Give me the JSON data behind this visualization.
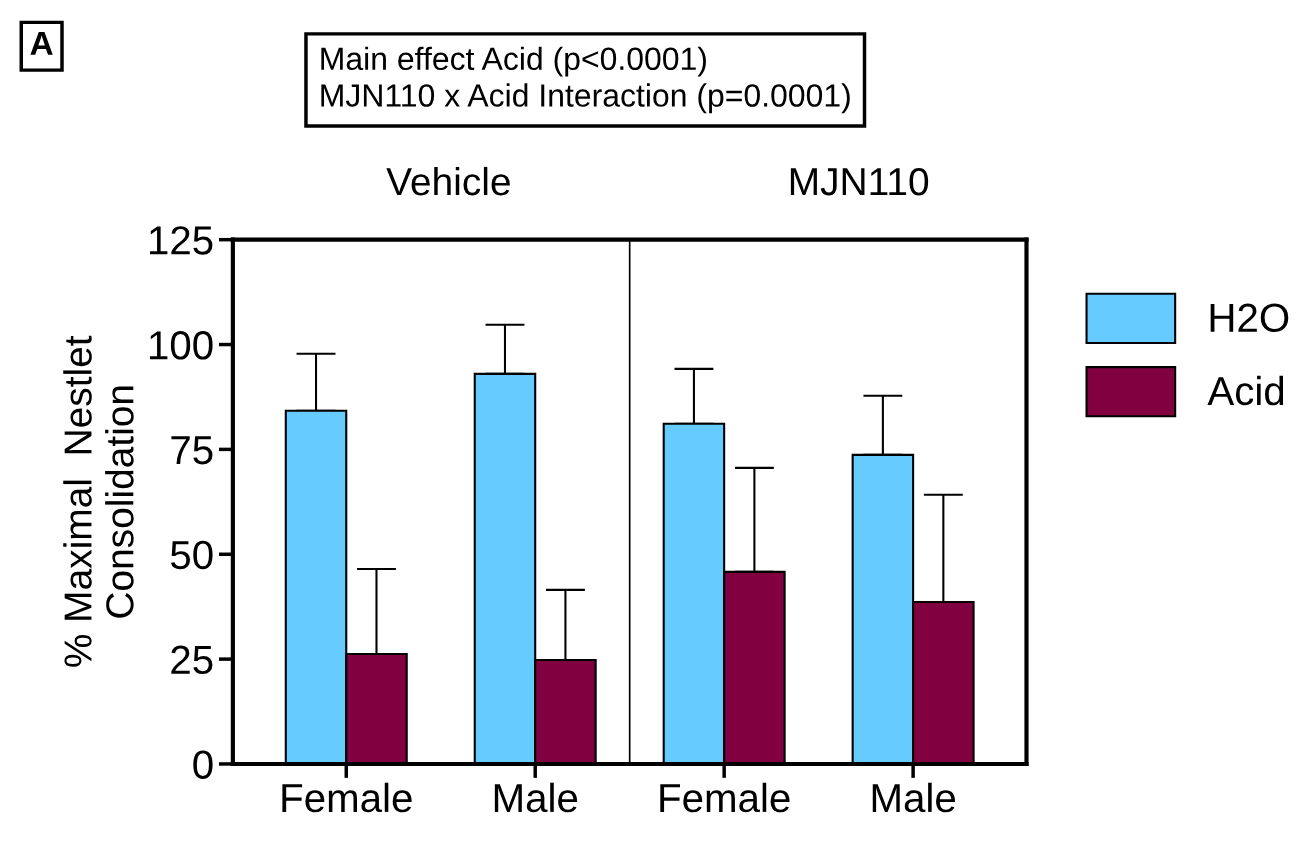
{
  "chart_data": {
    "type": "bar",
    "ylabel": "% Maximal  Nestlet\nConsolidation",
    "categories": [
      "Female",
      "Male",
      "Female",
      "Male"
    ],
    "series": [
      {
        "name": "H2O",
        "color": "#66ccff",
        "values": [
          84.2,
          93.0,
          81.1,
          73.7
        ],
        "errors": [
          [
            84.2,
            97.8
          ],
          [
            93.0,
            104.7
          ],
          [
            81.1,
            94.2
          ],
          [
            73.7,
            87.8
          ]
        ]
      },
      {
        "name": "Acid",
        "color": "#800040",
        "values": [
          26.2,
          24.8,
          45.8,
          38.6
        ],
        "errors": [
          [
            26.2,
            46.5
          ],
          [
            24.8,
            41.5
          ],
          [
            45.8,
            70.6
          ],
          [
            38.6,
            64.2
          ]
        ]
      }
    ],
    "ylim": [
      0,
      125
    ],
    "yticks": [
      0,
      25,
      50,
      75,
      100,
      125
    ],
    "grid": false,
    "legend": "right",
    "annotations": [
      "A",
      "Main effect Acid (p<0.0001)\nMJN110 x Acid Interaction (p=0.0001)",
      "Vehicle",
      "MJN110"
    ]
  }
}
